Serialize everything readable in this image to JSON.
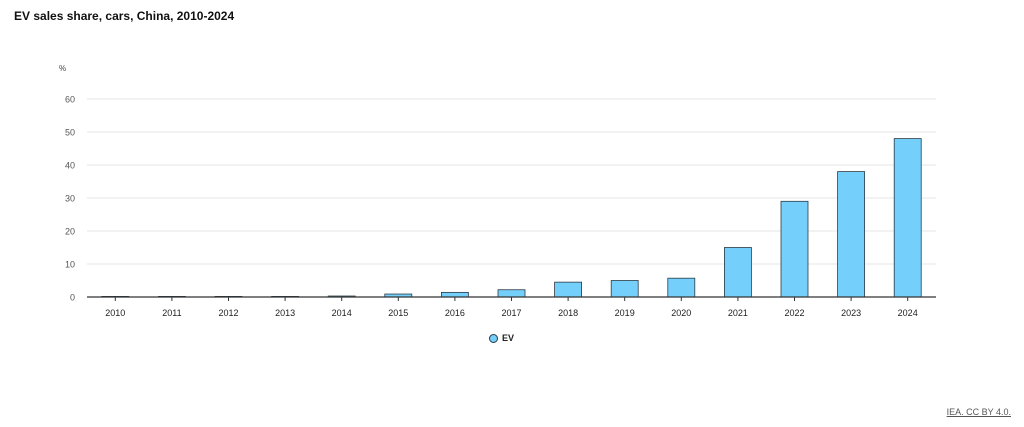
{
  "title": "EV sales share, cars, China, 2010-2024",
  "source_link": "IEA. CC BY 4.0.",
  "colors": {
    "bar_fill": "#74d0fb",
    "bar_stroke": "#2a3a45",
    "grid": "#e6e6e6",
    "axis": "#333333"
  },
  "chart_data": {
    "type": "bar",
    "title": "EV sales share, cars, China, 2010-2024",
    "ylabel": "%",
    "xlabel": "",
    "categories": [
      "2010",
      "2011",
      "2012",
      "2013",
      "2014",
      "2015",
      "2016",
      "2017",
      "2018",
      "2019",
      "2020",
      "2021",
      "2022",
      "2023",
      "2024"
    ],
    "series": [
      {
        "name": "EV",
        "values": [
          0.02,
          0.04,
          0.06,
          0.08,
          0.3,
          0.9,
          1.4,
          2.2,
          4.5,
          5.0,
          5.7,
          15.0,
          29.0,
          38.0,
          48.0
        ]
      }
    ],
    "ylim": [
      0,
      60
    ],
    "yticks": [
      0,
      10,
      20,
      30,
      40,
      50,
      60
    ],
    "grid": true,
    "legend": "bottom-center"
  }
}
